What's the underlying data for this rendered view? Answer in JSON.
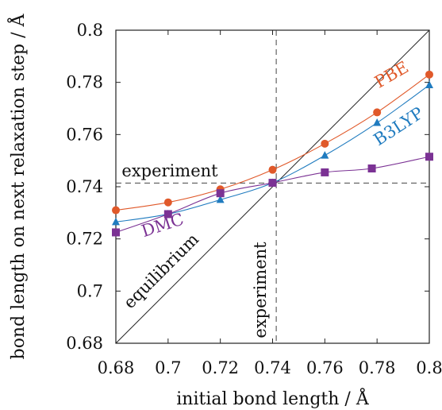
{
  "chart_data": {
    "type": "line",
    "xlabel": "initial bond length / Å",
    "ylabel": "bond length on next relaxation step / Å",
    "xlim": [
      0.68,
      0.8
    ],
    "ylim": [
      0.68,
      0.8
    ],
    "x_ticks": [
      "0.68",
      "0.7",
      "0.72",
      "0.74",
      "0.76",
      "0.78",
      "0.8"
    ],
    "y_ticks": [
      "0.68",
      "0.7",
      "0.72",
      "0.74",
      "0.76",
      "0.78",
      "0.8"
    ],
    "grid": false,
    "series": [
      {
        "name": "PBE",
        "color": "#e0592a",
        "marker": "circle",
        "x": [
          0.68,
          0.7,
          0.72,
          0.74,
          0.76,
          0.78,
          0.8
        ],
        "y": [
          0.731,
          0.734,
          0.739,
          0.7465,
          0.7565,
          0.7685,
          0.783
        ]
      },
      {
        "name": "B3LYP",
        "color": "#1f7bbf",
        "marker": "triangle",
        "x": [
          0.68,
          0.7,
          0.72,
          0.74,
          0.76,
          0.78,
          0.8
        ],
        "y": [
          0.7265,
          0.7295,
          0.735,
          0.7415,
          0.752,
          0.7645,
          0.779
        ]
      },
      {
        "name": "DMC",
        "color": "#7b3294",
        "marker": "square",
        "x": [
          0.68,
          0.7,
          0.72,
          0.74,
          0.76,
          0.778,
          0.8
        ],
        "y": [
          0.7225,
          0.7295,
          0.7375,
          0.7415,
          0.7455,
          0.747,
          0.7515
        ]
      }
    ],
    "reference_lines": [
      {
        "label": "equilibrium",
        "kind": "diagonal"
      },
      {
        "label": "experiment",
        "kind": "horizontal",
        "value": 0.7414
      },
      {
        "label": "experiment",
        "kind": "vertical",
        "value": 0.7414
      }
    ]
  }
}
